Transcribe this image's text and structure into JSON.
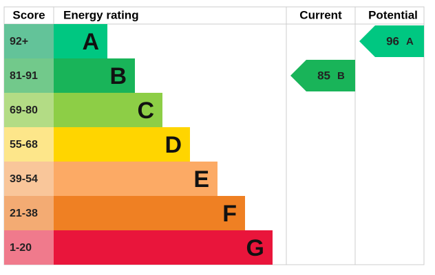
{
  "chart_data": {
    "type": "epc",
    "headers": {
      "score": "Score",
      "rating": "Energy rating",
      "current": "Current",
      "potential": "Potential"
    },
    "bands": [
      {
        "score": "92+",
        "letter": "A",
        "color": "#00c781",
        "score_color": "#63c399"
      },
      {
        "score": "81-91",
        "letter": "B",
        "color": "#19b459",
        "score_color": "#72c98b"
      },
      {
        "score": "69-80",
        "letter": "C",
        "color": "#8dce46",
        "score_color": "#b3dc85"
      },
      {
        "score": "55-68",
        "letter": "D",
        "color": "#ffd500",
        "score_color": "#fde68a"
      },
      {
        "score": "39-54",
        "letter": "E",
        "color": "#fcaa65",
        "score_color": "#f9c69a"
      },
      {
        "score": "21-38",
        "letter": "F",
        "color": "#ef8023",
        "score_color": "#f3ab73"
      },
      {
        "score": "1-20",
        "letter": "G",
        "color": "#e9153b",
        "score_color": "#f07a8c"
      }
    ],
    "current": {
      "value": 85,
      "letter": "B"
    },
    "potential": {
      "value": 96,
      "letter": "A"
    }
  }
}
